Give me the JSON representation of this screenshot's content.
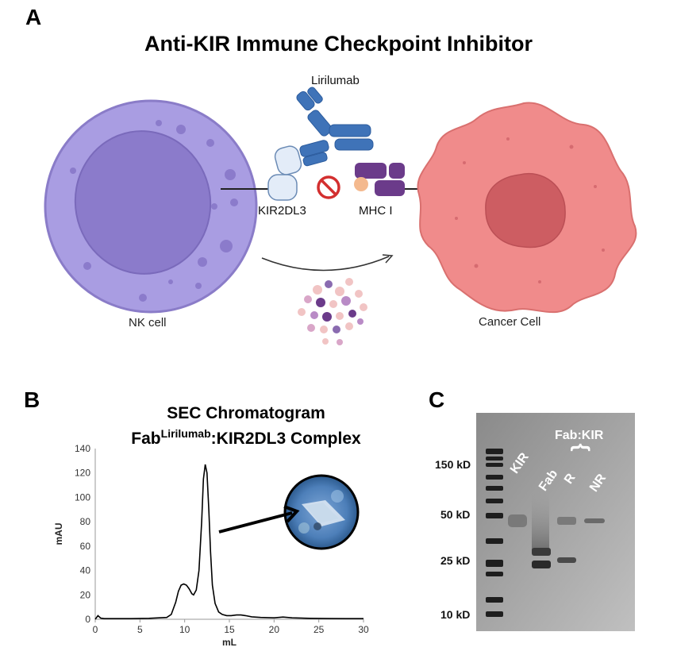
{
  "panel_a": {
    "letter": "A",
    "title": "Anti-KIR Immune Checkpoint Inhibitor",
    "antibody_label": "Lirilumab",
    "receptor_label": "KIR2DL3",
    "ligand_label": "MHC I",
    "nk_cell_label": "NK cell",
    "cancer_cell_label": "Cancer Cell",
    "colors": {
      "nk_cell": "#a89be0",
      "cancer_cell": "#ef8a8a",
      "antibody": "#3f73b8",
      "mhc": "#6b3b8a",
      "block": "#d32f2f"
    },
    "icons": [
      "nk-cell-icon",
      "cancer-cell-icon",
      "antibody-icon",
      "kir-receptor-icon",
      "mhc-icon",
      "block-icon",
      "granule-cluster-icon"
    ]
  },
  "panel_b": {
    "letter": "B",
    "title_line1": "SEC Chromatogram",
    "title_prefix": "Fab",
    "title_sup": "Lirilumab",
    "title_suffix": ":KIR2DL3 Complex",
    "inset_icon": "crystal-photo-icon"
  },
  "chart_data": {
    "type": "line",
    "title": "SEC Chromatogram Fab Lirilumab :KIR2DL3 Complex",
    "xlabel": "mL",
    "ylabel": "mAU",
    "xlim": [
      0,
      30
    ],
    "ylim": [
      0,
      140
    ],
    "xticks": [
      0,
      5,
      10,
      15,
      20,
      25,
      30
    ],
    "yticks": [
      0,
      20,
      40,
      60,
      80,
      100,
      120,
      140
    ],
    "grid": false,
    "series": [
      {
        "x": [
          0,
          0.3,
          0.6,
          1,
          2,
          4,
          6,
          8,
          8.5,
          9,
          9.3,
          9.6,
          9.9,
          10.2,
          10.5,
          10.8,
          11.0,
          11.3,
          11.6,
          11.9,
          12.1,
          12.3,
          12.5,
          12.7,
          12.9,
          13.1,
          13.4,
          13.8,
          14.2,
          14.7,
          15.2,
          15.8,
          16.3,
          16.8,
          17.5,
          18.5,
          20,
          21,
          22,
          24,
          26,
          28,
          30
        ],
        "y": [
          0,
          3,
          1,
          0.5,
          0.5,
          0.5,
          0.8,
          1.5,
          4,
          14,
          23,
          28,
          29,
          28,
          25,
          21,
          20,
          24,
          40,
          80,
          115,
          127,
          120,
          90,
          55,
          28,
          13,
          6,
          4,
          3,
          3,
          3.5,
          3.5,
          3,
          2,
          1.5,
          1.2,
          1.8,
          1.2,
          0.8,
          0.6,
          0.5,
          0.5
        ]
      }
    ]
  },
  "panel_c": {
    "letter": "C",
    "markers": [
      "150 kD",
      "50 kD",
      "25 kD",
      "10 kD"
    ],
    "lanes": [
      "KIR",
      "Fab",
      "R",
      "NR"
    ],
    "group_label": "Fab:KIR",
    "brace": "{"
  }
}
